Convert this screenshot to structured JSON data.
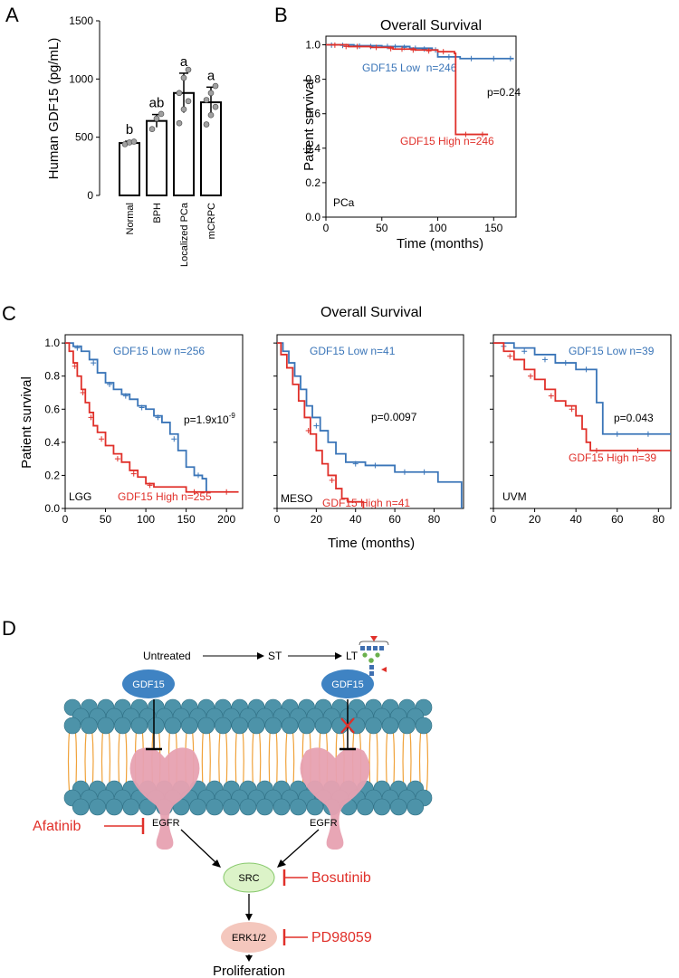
{
  "colors": {
    "low": "#3a75b8",
    "high": "#e0302a",
    "inhibitor": "#e0302a",
    "membrane": "#4d93a9",
    "lipid_tail": "#f0a23a",
    "receptor": "#e7a1b1",
    "gdf15": "#3f83c3",
    "src": "#dcf3c8",
    "erk": "#f4c7bd"
  },
  "panels": {
    "a": "A",
    "b": "B",
    "c": "C",
    "d": "D"
  },
  "chart_data": [
    {
      "type": "bar",
      "panel": "A",
      "ylabel": "Human GDF15 (pg/mL)",
      "ylim": [
        0,
        1500
      ],
      "yticks": [
        "0",
        "500",
        "1000",
        "1500"
      ],
      "categories": [
        "Normal",
        "BPH",
        "Localized PCa",
        "mCRPC"
      ],
      "values": [
        450,
        640,
        880,
        800
      ],
      "errors": [
        15,
        55,
        170,
        130
      ],
      "letters": [
        "b",
        "ab",
        "a",
        "a"
      ],
      "points": [
        [
          440,
          455,
          462
        ],
        [
          570,
          660,
          700
        ],
        [
          620,
          740,
          810,
          880,
          1010,
          1080
        ],
        [
          610,
          690,
          760,
          820,
          880,
          940
        ]
      ]
    },
    {
      "type": "line",
      "panel": "B",
      "title": "Overall Survival",
      "xlabel": "Time (months)",
      "ylabel": "Patient survival",
      "xlim": [
        0,
        170
      ],
      "ylim": [
        0,
        1.05
      ],
      "xticks": [
        "0",
        "50",
        "100",
        "150"
      ],
      "yticks": [
        "0.0",
        "0.2",
        "0.4",
        "0.6",
        "0.8",
        "1.0"
      ],
      "cohort": "PCa",
      "pvalue": "p=0.24",
      "series": [
        {
          "name": "GDF15 Low  n=246",
          "color": "#3a75b8",
          "steps": [
            [
              0,
              1.0
            ],
            [
              25,
              0.995
            ],
            [
              50,
              0.99
            ],
            [
              75,
              0.98
            ],
            [
              95,
              0.97
            ],
            [
              100,
              0.93
            ],
            [
              120,
              0.92
            ],
            [
              168,
              0.92
            ]
          ],
          "censors": [
            [
              5,
              0.998
            ],
            [
              15,
              0.996
            ],
            [
              30,
              0.993
            ],
            [
              40,
              0.99
            ],
            [
              55,
              0.99
            ],
            [
              62,
              0.988
            ],
            [
              70,
              0.985
            ],
            [
              80,
              0.98
            ],
            [
              88,
              0.975
            ],
            [
              98,
              0.97
            ],
            [
              110,
              0.93
            ],
            [
              130,
              0.92
            ],
            [
              150,
              0.92
            ],
            [
              165,
              0.92
            ]
          ]
        },
        {
          "name": "GDF15 High n=246",
          "color": "#e0302a",
          "steps": [
            [
              0,
              1.0
            ],
            [
              20,
              0.99
            ],
            [
              40,
              0.985
            ],
            [
              60,
              0.975
            ],
            [
              80,
              0.97
            ],
            [
              100,
              0.96
            ],
            [
              115,
              0.95
            ],
            [
              116,
              0.48
            ],
            [
              145,
              0.48
            ]
          ],
          "censors": [
            [
              8,
              0.998
            ],
            [
              18,
              0.99
            ],
            [
              28,
              0.99
            ],
            [
              45,
              0.985
            ],
            [
              58,
              0.978
            ],
            [
              68,
              0.975
            ],
            [
              78,
              0.97
            ],
            [
              92,
              0.965
            ],
            [
              105,
              0.96
            ],
            [
              125,
              0.48
            ],
            [
              140,
              0.48
            ]
          ]
        }
      ]
    },
    {
      "type": "line",
      "panel": "C",
      "title": "Overall Survival",
      "xlabel": "Time (months)",
      "ylabel": "Patient survival",
      "ylim": [
        0,
        1.05
      ],
      "yticks": [
        "0.0",
        "0.2",
        "0.4",
        "0.6",
        "0.8",
        "1.0"
      ],
      "subplots": [
        {
          "cohort": "LGG",
          "xlim": [
            0,
            220
          ],
          "xticks": [
            "0",
            "50",
            "100",
            "150",
            "200"
          ],
          "pvalue_base": "p=1.9x10",
          "pvalue_exp": "-9",
          "series": [
            {
              "name": "GDF15 Low n=256",
              "color": "#3a75b8",
              "steps": [
                [
                  0,
                  1.0
                ],
                [
                  10,
                  0.98
                ],
                [
                  20,
                  0.95
                ],
                [
                  30,
                  0.9
                ],
                [
                  40,
                  0.82
                ],
                [
                  50,
                  0.76
                ],
                [
                  60,
                  0.72
                ],
                [
                  70,
                  0.69
                ],
                [
                  80,
                  0.66
                ],
                [
                  90,
                  0.62
                ],
                [
                  100,
                  0.6
                ],
                [
                  110,
                  0.56
                ],
                [
                  120,
                  0.52
                ],
                [
                  130,
                  0.45
                ],
                [
                  140,
                  0.35
                ],
                [
                  150,
                  0.25
                ],
                [
                  160,
                  0.2
                ],
                [
                  170,
                  0.18
                ],
                [
                  175,
                  0.1
                ],
                [
                  180,
                  0.1
                ]
              ],
              "censors": [
                [
                  15,
                  0.97
                ],
                [
                  35,
                  0.88
                ],
                [
                  55,
                  0.75
                ],
                [
                  75,
                  0.68
                ],
                [
                  95,
                  0.61
                ],
                [
                  115,
                  0.55
                ],
                [
                  135,
                  0.42
                ],
                [
                  165,
                  0.2
                ]
              ]
            },
            {
              "name": "GDF15 High n=255",
              "color": "#e0302a",
              "steps": [
                [
                  0,
                  1.0
                ],
                [
                  5,
                  0.95
                ],
                [
                  10,
                  0.88
                ],
                [
                  15,
                  0.8
                ],
                [
                  20,
                  0.72
                ],
                [
                  25,
                  0.64
                ],
                [
                  30,
                  0.58
                ],
                [
                  35,
                  0.5
                ],
                [
                  40,
                  0.46
                ],
                [
                  50,
                  0.38
                ],
                [
                  60,
                  0.33
                ],
                [
                  70,
                  0.28
                ],
                [
                  80,
                  0.23
                ],
                [
                  90,
                  0.19
                ],
                [
                  100,
                  0.15
                ],
                [
                  110,
                  0.13
                ],
                [
                  130,
                  0.13
                ],
                [
                  150,
                  0.1
                ],
                [
                  215,
                  0.1
                ]
              ],
              "censors": [
                [
                  12,
                  0.86
                ],
                [
                  22,
                  0.7
                ],
                [
                  32,
                  0.55
                ],
                [
                  45,
                  0.42
                ],
                [
                  65,
                  0.3
                ],
                [
                  85,
                  0.21
                ],
                [
                  105,
                  0.14
                ],
                [
                  160,
                  0.1
                ],
                [
                  200,
                  0.1
                ]
              ]
            }
          ]
        },
        {
          "cohort": "MESO",
          "xlim": [
            0,
            95
          ],
          "xticks": [
            "0",
            "20",
            "40",
            "60",
            "80"
          ],
          "pvalue": "p=0.0097",
          "series": [
            {
              "name": "GDF15 Low n=41",
              "color": "#3a75b8",
              "steps": [
                [
                  0,
                  1.0
                ],
                [
                  3,
                  0.95
                ],
                [
                  6,
                  0.88
                ],
                [
                  9,
                  0.8
                ],
                [
                  12,
                  0.72
                ],
                [
                  15,
                  0.62
                ],
                [
                  18,
                  0.55
                ],
                [
                  22,
                  0.47
                ],
                [
                  26,
                  0.4
                ],
                [
                  30,
                  0.33
                ],
                [
                  35,
                  0.28
                ],
                [
                  45,
                  0.26
                ],
                [
                  60,
                  0.22
                ],
                [
                  82,
                  0.16
                ],
                [
                  94,
                  0.0
                ]
              ],
              "censors": [
                [
                  20,
                  0.5
                ],
                [
                  40,
                  0.27
                ],
                [
                  50,
                  0.26
                ],
                [
                  65,
                  0.22
                ],
                [
                  75,
                  0.22
                ]
              ]
            },
            {
              "name": "GDF15 High n=41",
              "color": "#e0302a",
              "steps": [
                [
                  0,
                  1.0
                ],
                [
                  2,
                  0.93
                ],
                [
                  5,
                  0.85
                ],
                [
                  8,
                  0.75
                ],
                [
                  11,
                  0.65
                ],
                [
                  14,
                  0.55
                ],
                [
                  17,
                  0.45
                ],
                [
                  20,
                  0.35
                ],
                [
                  23,
                  0.27
                ],
                [
                  26,
                  0.2
                ],
                [
                  30,
                  0.12
                ],
                [
                  33,
                  0.06
                ],
                [
                  36,
                  0.04
                ],
                [
                  42,
                  0.04
                ],
                [
                  44,
                  0.0
                ]
              ],
              "censors": [
                [
                  16,
                  0.47
                ],
                [
                  28,
                  0.17
                ]
              ]
            }
          ]
        },
        {
          "cohort": "UVM",
          "xlim": [
            0,
            86
          ],
          "xticks": [
            "0",
            "20",
            "40",
            "60",
            "80"
          ],
          "pvalue": "p=0.043",
          "series": [
            {
              "name": "GDF15 Low n=39",
              "color": "#3a75b8",
              "steps": [
                [
                  0,
                  1.0
                ],
                [
                  10,
                  0.97
                ],
                [
                  20,
                  0.93
                ],
                [
                  30,
                  0.88
                ],
                [
                  40,
                  0.84
                ],
                [
                  50,
                  0.64
                ],
                [
                  53,
                  0.45
                ],
                [
                  86,
                  0.45
                ]
              ],
              "censors": [
                [
                  5,
                  0.98
                ],
                [
                  15,
                  0.95
                ],
                [
                  25,
                  0.9
                ],
                [
                  35,
                  0.88
                ],
                [
                  45,
                  0.84
                ],
                [
                  60,
                  0.45
                ],
                [
                  75,
                  0.45
                ]
              ]
            },
            {
              "name": "GDF15 High n=39",
              "color": "#e0302a",
              "steps": [
                [
                  0,
                  1.0
                ],
                [
                  5,
                  0.95
                ],
                [
                  10,
                  0.9
                ],
                [
                  15,
                  0.84
                ],
                [
                  20,
                  0.78
                ],
                [
                  25,
                  0.72
                ],
                [
                  30,
                  0.65
                ],
                [
                  35,
                  0.62
                ],
                [
                  40,
                  0.56
                ],
                [
                  43,
                  0.48
                ],
                [
                  45,
                  0.4
                ],
                [
                  47,
                  0.35
                ],
                [
                  86,
                  0.35
                ]
              ],
              "censors": [
                [
                  8,
                  0.92
                ],
                [
                  18,
                  0.8
                ],
                [
                  28,
                  0.68
                ],
                [
                  38,
                  0.6
                ],
                [
                  50,
                  0.35
                ],
                [
                  70,
                  0.35
                ]
              ]
            }
          ]
        }
      ]
    }
  ],
  "diagram": {
    "untreated": "Untreated",
    "st": "ST",
    "lt": "LT",
    "gdf15": "GDF15",
    "egfr": "EGFR",
    "src": "SRC",
    "erk": "ERK1/2",
    "proliferation": "Proliferation",
    "afatinib": "Afatinib",
    "bosutinib": "Bosutinib",
    "pd98059": "PD98059"
  }
}
